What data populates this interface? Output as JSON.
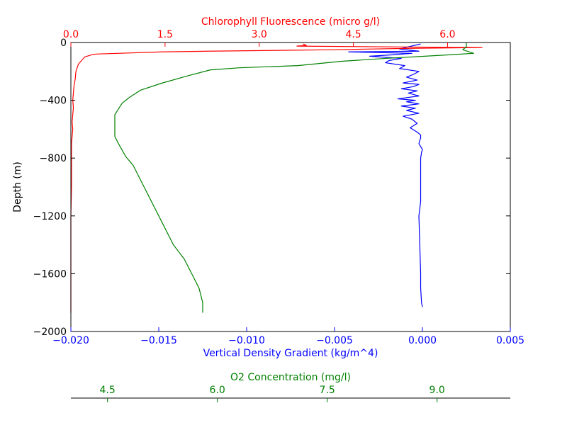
{
  "chart_data": {
    "type": "line",
    "y_axis": {
      "label": "Depth (m)",
      "lim": [
        -2000,
        0
      ],
      "ticks": [
        -2000,
        -1600,
        -1200,
        -800,
        -400,
        0
      ],
      "tick_labels": [
        "−2000",
        "−1600",
        "−1200",
        "−800",
        "−400",
        "0"
      ]
    },
    "axes": {
      "density": {
        "label": "Vertical Density Gradient (kg/m^4)",
        "color": "#0000ff",
        "position": "bottom",
        "lim": [
          -0.02,
          0.005
        ],
        "ticks": [
          -0.02,
          -0.015,
          -0.01,
          -0.005,
          0.0,
          0.005
        ],
        "tick_labels": [
          "−0.020",
          "−0.015",
          "−0.010",
          "−0.005",
          "0.000",
          "0.005"
        ]
      },
      "chlorophyll": {
        "label": "Chlorophyll Fluorescence (micro g/l)",
        "color": "#ff0000",
        "position": "top",
        "lim": [
          0.0,
          7.0
        ],
        "ticks": [
          0.0,
          1.5,
          3.0,
          4.5,
          6.0
        ],
        "tick_labels": [
          "0.0",
          "1.5",
          "3.0",
          "4.5",
          "6.0"
        ]
      },
      "oxygen": {
        "label": "O2 Concentration (mg/l)",
        "color": "#008000",
        "position": "bottom-offset",
        "lim": [
          4.0,
          10.0
        ],
        "ticks": [
          4.5,
          6.0,
          7.5,
          9.0
        ],
        "tick_labels": [
          "4.5",
          "6.0",
          "7.5",
          "9.0"
        ]
      }
    },
    "series": [
      {
        "axis": "density",
        "color": "#0000ff",
        "x": [
          -0.0001,
          -0.0008,
          -0.0013,
          -0.0002,
          -0.0042,
          -0.0006,
          -0.0017,
          -0.003,
          -0.0012,
          -0.0019,
          -0.0021,
          -0.001,
          -0.0013,
          -0.0002,
          -0.0005,
          -0.0009,
          -0.0003,
          -0.0011,
          -0.0002,
          -0.0005,
          -0.0012,
          -0.0003,
          -0.0008,
          -0.0002,
          -0.0014,
          -0.0004,
          -0.0009,
          -0.0002,
          -0.0012,
          -0.0004,
          -0.0009,
          -0.0002,
          -0.0011,
          -0.0006,
          -0.0003,
          -0.0007,
          -0.0003,
          -0.0001,
          -0.0001,
          -0.0002,
          0.0,
          -5e-05,
          -0.0001,
          -0.0001,
          -0.0001,
          -0.0001,
          -0.0001,
          -0.0002,
          -0.00015,
          -0.0001,
          -0.0001,
          -5e-05,
          0.0
        ],
        "y": [
          -10,
          -30,
          -45,
          -60,
          -65,
          -75,
          -85,
          -95,
          -110,
          -125,
          -140,
          -160,
          -180,
          -200,
          -220,
          -240,
          -260,
          -280,
          -290,
          -305,
          -320,
          -335,
          -350,
          -370,
          -390,
          -400,
          -410,
          -425,
          -440,
          -455,
          -470,
          -490,
          -510,
          -530,
          -560,
          -590,
          -620,
          -640,
          -660,
          -700,
          -740,
          -760,
          -800,
          -830,
          -900,
          -1000,
          -1100,
          -1200,
          -1400,
          -1600,
          -1700,
          -1800,
          -1830
        ]
      },
      {
        "axis": "chlorophyll",
        "color": "#ff0000",
        "x": [
          3.7,
          3.75,
          3.6,
          6.55,
          5.5,
          4.8,
          4.2,
          3.2,
          2.2,
          1.45,
          0.75,
          0.4,
          0.33,
          0.22,
          0.12,
          0.08,
          0.07,
          0.05,
          0.04,
          0.03,
          0.04,
          0.03,
          0.02,
          0.03,
          0.02,
          0.01,
          0.01,
          0.01,
          0.0,
          0.0,
          0.0,
          0.0
        ],
        "y": [
          -10,
          -20,
          -25,
          -35,
          -40,
          -45,
          -50,
          -55,
          -60,
          -65,
          -75,
          -80,
          -85,
          -100,
          -150,
          -200,
          -250,
          -300,
          -350,
          -400,
          -450,
          -500,
          -550,
          -600,
          -650,
          -700,
          -800,
          -1000,
          -1200,
          -1500,
          -1700,
          -1870
        ]
      },
      {
        "axis": "oxygen",
        "color": "#008000",
        "x": [
          9.4,
          9.4,
          9.35,
          9.5,
          9.0,
          8.3,
          7.7,
          7.1,
          6.3,
          5.9,
          5.6,
          5.25,
          4.95,
          4.8,
          4.7,
          4.65,
          4.6,
          4.6,
          4.6,
          4.65,
          4.75,
          4.85,
          5.0,
          5.2,
          5.4,
          5.55,
          5.65,
          5.75,
          5.8,
          5.8
        ],
        "y": [
          0,
          -30,
          -50,
          -75,
          -90,
          -110,
          -130,
          -160,
          -175,
          -190,
          -230,
          -280,
          -330,
          -380,
          -420,
          -460,
          -500,
          -550,
          -650,
          -700,
          -790,
          -850,
          -1000,
          -1200,
          -1400,
          -1500,
          -1600,
          -1700,
          -1800,
          -1870
        ]
      }
    ]
  }
}
